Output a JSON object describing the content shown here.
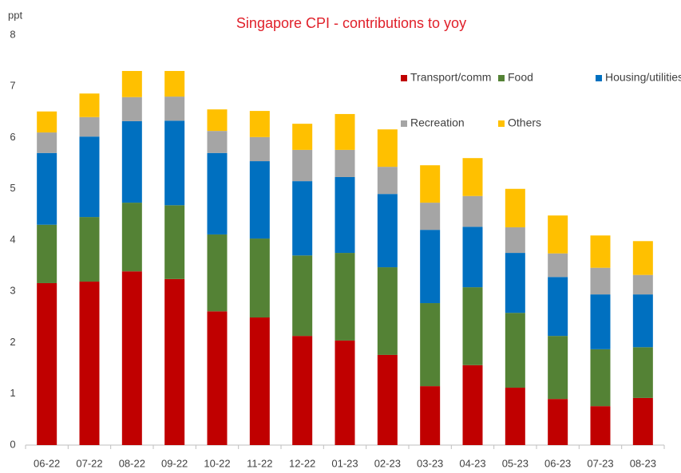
{
  "chart_data": {
    "type": "bar",
    "stacked": true,
    "title": "Singapore CPI - contributions to yoy",
    "y_label": "ppt",
    "categories": [
      "06-22",
      "07-22",
      "08-22",
      "09-22",
      "10-22",
      "11-22",
      "12-22",
      "01-23",
      "02-23",
      "03-23",
      "04-23",
      "05-23",
      "06-23",
      "07-23",
      "08-23"
    ],
    "series": [
      {
        "name": "Transport/comm",
        "color": "#c00000",
        "values": [
          3.16,
          3.19,
          3.39,
          3.24,
          2.61,
          2.49,
          2.13,
          2.04,
          1.76,
          1.15,
          1.56,
          1.12,
          0.9,
          0.76,
          0.92
        ]
      },
      {
        "name": "Food",
        "color": "#548235",
        "values": [
          1.14,
          1.26,
          1.34,
          1.44,
          1.5,
          1.54,
          1.57,
          1.71,
          1.71,
          1.62,
          1.52,
          1.46,
          1.23,
          1.11,
          0.99
        ]
      },
      {
        "name": "Housing/utilities",
        "color": "#0070c0",
        "values": [
          1.4,
          1.57,
          1.59,
          1.65,
          1.59,
          1.51,
          1.45,
          1.48,
          1.43,
          1.43,
          1.18,
          1.17,
          1.15,
          1.07,
          1.03
        ]
      },
      {
        "name": "Recreation",
        "color": "#a5a5a5",
        "values": [
          0.4,
          0.38,
          0.47,
          0.47,
          0.43,
          0.47,
          0.61,
          0.53,
          0.53,
          0.53,
          0.6,
          0.5,
          0.46,
          0.52,
          0.38
        ]
      },
      {
        "name": "Others",
        "color": "#ffc000",
        "values": [
          0.41,
          0.46,
          0.51,
          0.5,
          0.42,
          0.51,
          0.51,
          0.7,
          0.73,
          0.73,
          0.74,
          0.75,
          0.74,
          0.63,
          0.66
        ]
      }
    ],
    "ylim": [
      0,
      8
    ],
    "yticks": [
      0,
      1,
      2,
      3,
      4,
      5,
      6,
      7,
      8
    ],
    "grid": false
  }
}
